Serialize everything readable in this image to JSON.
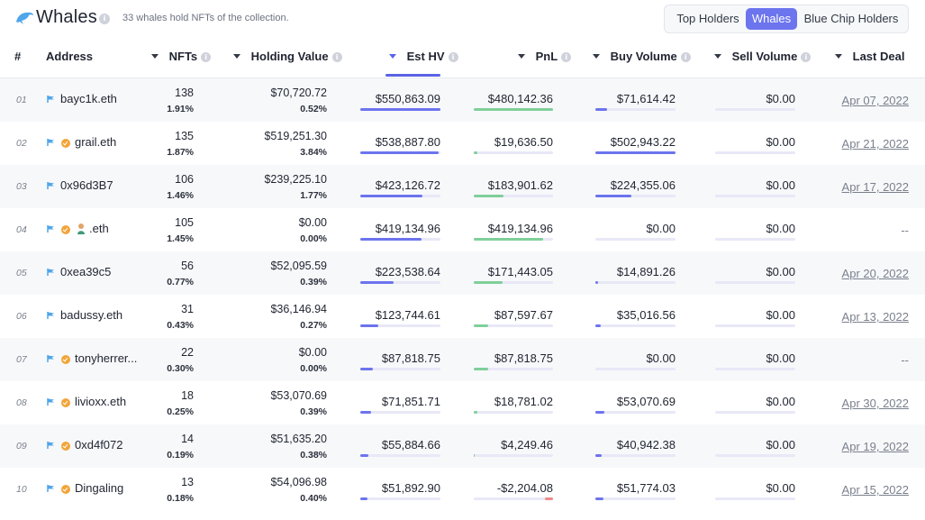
{
  "header": {
    "title": "Whales",
    "subtitle": "33 whales hold NFTs of the collection."
  },
  "tabs": [
    {
      "label": "Top Holders",
      "active": false
    },
    {
      "label": "Whales",
      "active": true
    },
    {
      "label": "Blue Chip Holders",
      "active": false
    }
  ],
  "columns": {
    "rank": "#",
    "address": "Address",
    "nfts": "NFTs",
    "holding_value": "Holding Value",
    "est_hv": "Est HV",
    "pnl": "PnL",
    "buy_volume": "Buy Volume",
    "sell_volume": "Sell Volume",
    "last_deal": "Last Deal"
  },
  "colors": {
    "accent": "#6c74ee",
    "bar_est": "#6c74ee",
    "bar_pnl": "#7fcf9a",
    "bar_pnl_negative": "#f08a8a",
    "bar_buy": "#6c74ee",
    "track": "#e8e8f7"
  },
  "rows": [
    {
      "rank": "01",
      "address": "bayc1k.eth",
      "badge": false,
      "emoji": false,
      "nfts": "138",
      "nfts_pct": "1.91%",
      "holding": "$70,720.72",
      "holding_pct": "0.52%",
      "est_hv": "$550,863.09",
      "est_hv_frac": 1.0,
      "pnl": "$480,142.36",
      "pnl_frac": 1.0,
      "pnl_negative": false,
      "buy": "$71,614.42",
      "buy_frac": 0.14,
      "sell": "$0.00",
      "last_deal": "Apr 07, 2022"
    },
    {
      "rank": "02",
      "address": "grail.eth",
      "badge": true,
      "emoji": false,
      "nfts": "135",
      "nfts_pct": "1.87%",
      "holding": "$519,251.30",
      "holding_pct": "3.84%",
      "est_hv": "$538,887.80",
      "est_hv_frac": 0.98,
      "pnl": "$19,636.50",
      "pnl_frac": 0.04,
      "pnl_negative": false,
      "buy": "$502,943.22",
      "buy_frac": 1.0,
      "sell": "$0.00",
      "last_deal": "Apr 21, 2022"
    },
    {
      "rank": "03",
      "address": "0x96d3B7",
      "badge": false,
      "emoji": false,
      "nfts": "106",
      "nfts_pct": "1.46%",
      "holding": "$239,225.10",
      "holding_pct": "1.77%",
      "est_hv": "$423,126.72",
      "est_hv_frac": 0.77,
      "pnl": "$183,901.62",
      "pnl_frac": 0.38,
      "pnl_negative": false,
      "buy": "$224,355.06",
      "buy_frac": 0.45,
      "sell": "$0.00",
      "last_deal": "Apr 17, 2022"
    },
    {
      "rank": "04",
      "address": ".eth",
      "badge": true,
      "emoji": true,
      "nfts": "105",
      "nfts_pct": "1.45%",
      "holding": "$0.00",
      "holding_pct": "0.00%",
      "est_hv": "$419,134.96",
      "est_hv_frac": 0.76,
      "pnl": "$419,134.96",
      "pnl_frac": 0.87,
      "pnl_negative": false,
      "buy": "$0.00",
      "buy_frac": 0.0,
      "sell": "$0.00",
      "last_deal": "--"
    },
    {
      "rank": "05",
      "address": "0xea39c5",
      "badge": false,
      "emoji": false,
      "nfts": "56",
      "nfts_pct": "0.77%",
      "holding": "$52,095.59",
      "holding_pct": "0.39%",
      "est_hv": "$223,538.64",
      "est_hv_frac": 0.41,
      "pnl": "$171,443.05",
      "pnl_frac": 0.36,
      "pnl_negative": false,
      "buy": "$14,891.26",
      "buy_frac": 0.03,
      "sell": "$0.00",
      "last_deal": "Apr 20, 2022"
    },
    {
      "rank": "06",
      "address": "badussy.eth",
      "badge": false,
      "emoji": false,
      "nfts": "31",
      "nfts_pct": "0.43%",
      "holding": "$36,146.94",
      "holding_pct": "0.27%",
      "est_hv": "$123,744.61",
      "est_hv_frac": 0.22,
      "pnl": "$87,597.67",
      "pnl_frac": 0.18,
      "pnl_negative": false,
      "buy": "$35,016.56",
      "buy_frac": 0.07,
      "sell": "$0.00",
      "last_deal": "Apr 13, 2022"
    },
    {
      "rank": "07",
      "address": "tonyherrer...",
      "badge": true,
      "emoji": false,
      "nfts": "22",
      "nfts_pct": "0.30%",
      "holding": "$0.00",
      "holding_pct": "0.00%",
      "est_hv": "$87,818.75",
      "est_hv_frac": 0.16,
      "pnl": "$87,818.75",
      "pnl_frac": 0.18,
      "pnl_negative": false,
      "buy": "$0.00",
      "buy_frac": 0.0,
      "sell": "$0.00",
      "last_deal": "--"
    },
    {
      "rank": "08",
      "address": "livioxx.eth",
      "badge": true,
      "emoji": false,
      "nfts": "18",
      "nfts_pct": "0.25%",
      "holding": "$53,070.69",
      "holding_pct": "0.39%",
      "est_hv": "$71,851.71",
      "est_hv_frac": 0.13,
      "pnl": "$18,781.02",
      "pnl_frac": 0.04,
      "pnl_negative": false,
      "buy": "$53,070.69",
      "buy_frac": 0.11,
      "sell": "$0.00",
      "last_deal": "Apr 30, 2022"
    },
    {
      "rank": "09",
      "address": "0xd4f072",
      "badge": true,
      "emoji": false,
      "nfts": "14",
      "nfts_pct": "0.19%",
      "holding": "$51,635.20",
      "holding_pct": "0.38%",
      "est_hv": "$55,884.66",
      "est_hv_frac": 0.1,
      "pnl": "$4,249.46",
      "pnl_frac": 0.01,
      "pnl_negative": false,
      "buy": "$40,942.38",
      "buy_frac": 0.08,
      "sell": "$0.00",
      "last_deal": "Apr 19, 2022"
    },
    {
      "rank": "10",
      "address": "Dingaling",
      "badge": true,
      "emoji": false,
      "nfts": "13",
      "nfts_pct": "0.18%",
      "holding": "$54,096.98",
      "holding_pct": "0.40%",
      "est_hv": "$51,892.90",
      "est_hv_frac": 0.09,
      "pnl": "-$2,204.08",
      "pnl_frac": 0.1,
      "pnl_negative": true,
      "buy": "$51,774.03",
      "buy_frac": 0.1,
      "sell": "$0.00",
      "last_deal": "Apr 15, 2022"
    }
  ]
}
